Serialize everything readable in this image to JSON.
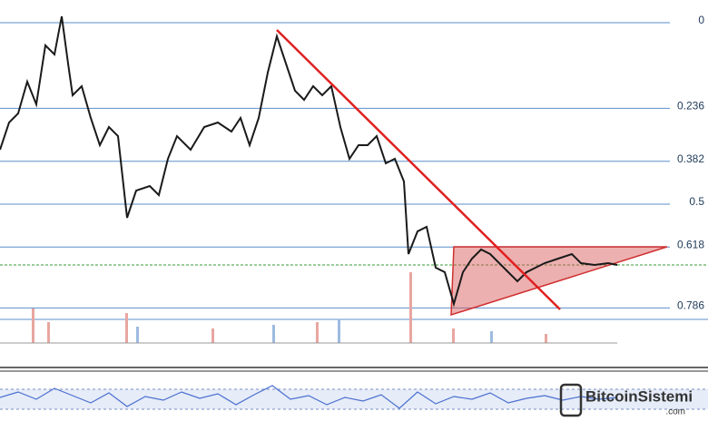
{
  "chart_data": {
    "type": "fibonacci",
    "ylim": [
      -0.05,
      0.95
    ],
    "yticks": [
      0,
      0.236,
      0.382,
      0.5,
      0.618,
      0.786
    ],
    "grid": true,
    "color": "#5b8fc9"
  },
  "watermark": {
    "name": "BitcoinSistemi",
    "domain": ".com"
  }
}
